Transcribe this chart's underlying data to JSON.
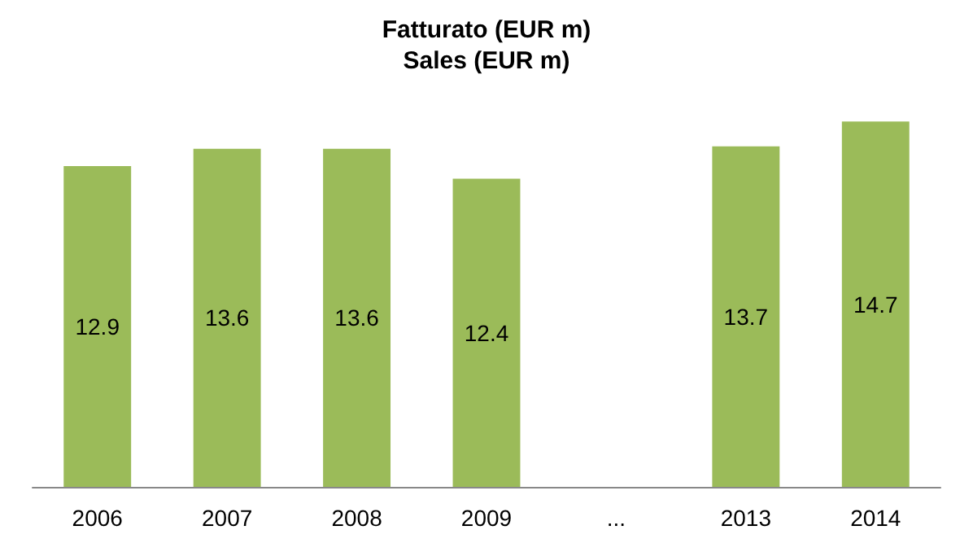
{
  "chart_data": {
    "type": "bar",
    "title": "Fatturato (EUR m)",
    "subtitle": "Sales (EUR m)",
    "categories": [
      "2006",
      "2007",
      "2008",
      "2009",
      "...",
      "2013",
      "2014"
    ],
    "values": [
      12.9,
      13.6,
      13.6,
      12.4,
      null,
      13.7,
      14.7
    ],
    "color": "#9bbb59",
    "data_labels": true
  }
}
